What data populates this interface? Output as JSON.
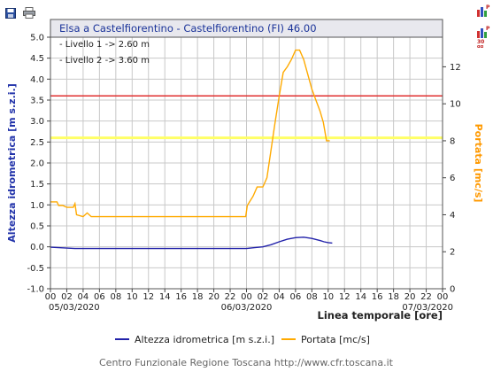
{
  "toolbar": {
    "save_icon": "floppy-disk-icon",
    "print_icon": "printer-icon"
  },
  "side_buttons": [
    {
      "icon": "bar-chart-p-icon"
    },
    {
      "icon": "bar-chart-30gg-icon",
      "label": "30 gg"
    }
  ],
  "footer": {
    "credit": "Centro Funzionale Regione Toscana http://www.cfr.toscana.it"
  },
  "chart_data": {
    "type": "line",
    "title": "Elsa a Castelfiorentino - Castelfiorentino (FI) 46.00",
    "annotations": [
      "- Livello 1 -> 2.60 m",
      "- Livello 2 -> 3.60 m"
    ],
    "thresholds": [
      {
        "name": "Livello 1",
        "value": 2.6,
        "color": "#ffff66"
      },
      {
        "name": "Livello 2",
        "value": 3.6,
        "color": "#e03030"
      }
    ],
    "xlabel": "Linea temporale [ore]",
    "ylabel_left": "Altezza idrometrica [m s.z.i.]",
    "ylabel_right": "Portata [mc/s]",
    "xlim_hours": [
      0,
      48
    ],
    "ylim_left": [
      -1.0,
      5.0
    ],
    "ylim_right": [
      0,
      13.6
    ],
    "y_ticks_left": [
      "-1.0",
      "-0.5",
      "0.0",
      "0.5",
      "1.0",
      "1.5",
      "2.0",
      "2.5",
      "3.0",
      "3.5",
      "4.0",
      "4.5",
      "5.0"
    ],
    "y_ticks_right": [
      "0",
      "2",
      "4",
      "6",
      "8",
      "10",
      "12"
    ],
    "x_tick_labels": [
      "00",
      "02",
      "04",
      "06",
      "08",
      "10",
      "12",
      "14",
      "16",
      "18",
      "20",
      "22",
      "00",
      "02",
      "04",
      "06",
      "08",
      "10",
      "12",
      "14",
      "16",
      "18",
      "20",
      "22",
      "00"
    ],
    "x_date_labels": [
      {
        "hour": 0,
        "text": "05/03/2020"
      },
      {
        "hour": 24,
        "text": "06/03/2020"
      },
      {
        "hour": 48,
        "text": "07/03/2020"
      }
    ],
    "grid": true,
    "legend_position": "bottom",
    "series": [
      {
        "name": "Altezza idrometrica [m s.z.i.]",
        "axis": "left",
        "color": "#2222aa",
        "points": [
          [
            0,
            -0.01
          ],
          [
            1,
            -0.02
          ],
          [
            2,
            -0.03
          ],
          [
            3,
            -0.04
          ],
          [
            6,
            -0.04
          ],
          [
            12,
            -0.04
          ],
          [
            18,
            -0.04
          ],
          [
            24,
            -0.04
          ],
          [
            25,
            -0.02
          ],
          [
            26,
            0.0
          ],
          [
            27,
            0.05
          ],
          [
            28,
            0.12
          ],
          [
            29,
            0.18
          ],
          [
            30,
            0.22
          ],
          [
            31,
            0.23
          ],
          [
            32,
            0.2
          ],
          [
            33,
            0.15
          ],
          [
            33.5,
            0.12
          ],
          [
            34,
            0.1
          ],
          [
            34.5,
            0.09
          ]
        ]
      },
      {
        "name": "Portata [mc/s]",
        "axis": "right",
        "color": "#ffaa00",
        "points": [
          [
            0,
            4.7
          ],
          [
            0.8,
            4.7
          ],
          [
            1,
            4.5
          ],
          [
            1.5,
            4.5
          ],
          [
            2,
            4.4
          ],
          [
            2.8,
            4.4
          ],
          [
            3,
            4.6
          ],
          [
            3.2,
            4.0
          ],
          [
            4,
            3.9
          ],
          [
            4.5,
            4.1
          ],
          [
            5,
            3.9
          ],
          [
            6,
            3.9
          ],
          [
            12,
            3.9
          ],
          [
            18,
            3.9
          ],
          [
            23.9,
            3.9
          ],
          [
            24.1,
            4.5
          ],
          [
            24.8,
            5.0
          ],
          [
            25.3,
            5.5
          ],
          [
            26,
            5.5
          ],
          [
            26.5,
            6.0
          ],
          [
            27,
            7.5
          ],
          [
            27.5,
            9.0
          ],
          [
            28,
            10.4
          ],
          [
            28.5,
            11.7
          ],
          [
            29,
            12.0
          ],
          [
            29.5,
            12.4
          ],
          [
            30,
            12.9
          ],
          [
            30.5,
            12.9
          ],
          [
            31,
            12.4
          ],
          [
            31.5,
            11.6
          ],
          [
            32,
            10.8
          ],
          [
            32.5,
            10.2
          ],
          [
            33,
            9.6
          ],
          [
            33.4,
            9.0
          ],
          [
            33.8,
            8.0
          ],
          [
            34.2,
            8.0
          ]
        ]
      }
    ]
  }
}
